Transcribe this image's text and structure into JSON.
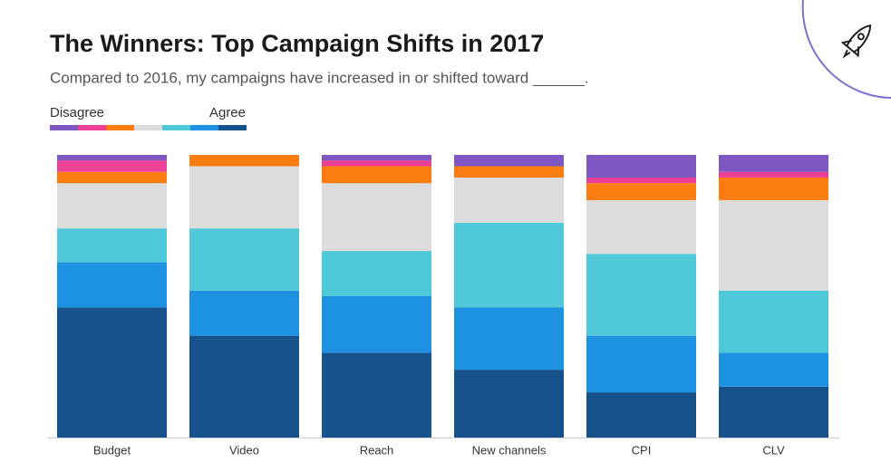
{
  "chart_data": {
    "type": "bar",
    "stacked": true,
    "title": "The Winners: Top Campaign Shifts in 2017",
    "subtitle": "Compared to 2016, my campaigns have increased in or shifted toward ______.",
    "legend": {
      "low": "Disagree",
      "high": "Agree"
    },
    "categories": [
      "Budget",
      "Video",
      "Reach",
      "New channels",
      "CPI",
      "CLV"
    ],
    "ylim": [
      0,
      100
    ],
    "series": [
      {
        "color": "#7e57c2",
        "values": [
          2,
          0,
          2,
          4,
          8,
          6
        ]
      },
      {
        "color": "#ec3f97",
        "values": [
          4,
          0,
          2,
          0,
          2,
          2
        ]
      },
      {
        "color": "#fb7c10",
        "values": [
          4,
          4,
          6,
          4,
          6,
          8
        ]
      },
      {
        "color": "#dcdcdc",
        "values": [
          16,
          22,
          24,
          16,
          19,
          32
        ]
      },
      {
        "color": "#4fc8d9",
        "values": [
          12,
          22,
          16,
          30,
          29,
          22
        ]
      },
      {
        "color": "#1f91e3",
        "values": [
          16,
          16,
          20,
          22,
          20,
          12
        ]
      },
      {
        "color": "#17528c",
        "values": [
          46,
          36,
          30,
          24,
          16,
          18
        ]
      }
    ]
  }
}
